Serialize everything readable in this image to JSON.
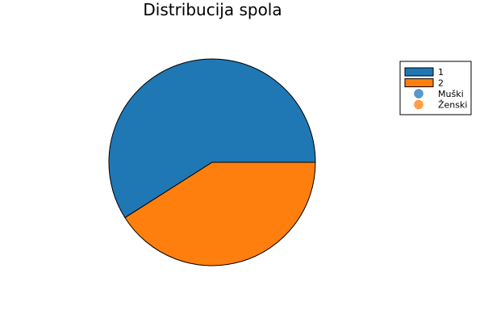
{
  "chart_data": {
    "type": "pie",
    "title": "Distribucija spola",
    "slices": [
      {
        "label": "1",
        "value": 0.59,
        "color": "#1f77b4"
      },
      {
        "label": "2",
        "value": 0.41,
        "color": "#ff7f0e"
      }
    ],
    "legend": {
      "placement": "top-right",
      "entries": [
        {
          "label": "1",
          "kind": "patch",
          "color": "#1f77b4"
        },
        {
          "label": "2",
          "kind": "patch",
          "color": "#ff7f0e"
        },
        {
          "label": "Muški",
          "kind": "marker",
          "color": "#1f77b4"
        },
        {
          "label": "Ženski",
          "kind": "marker",
          "color": "#ff7f0e"
        }
      ]
    }
  }
}
